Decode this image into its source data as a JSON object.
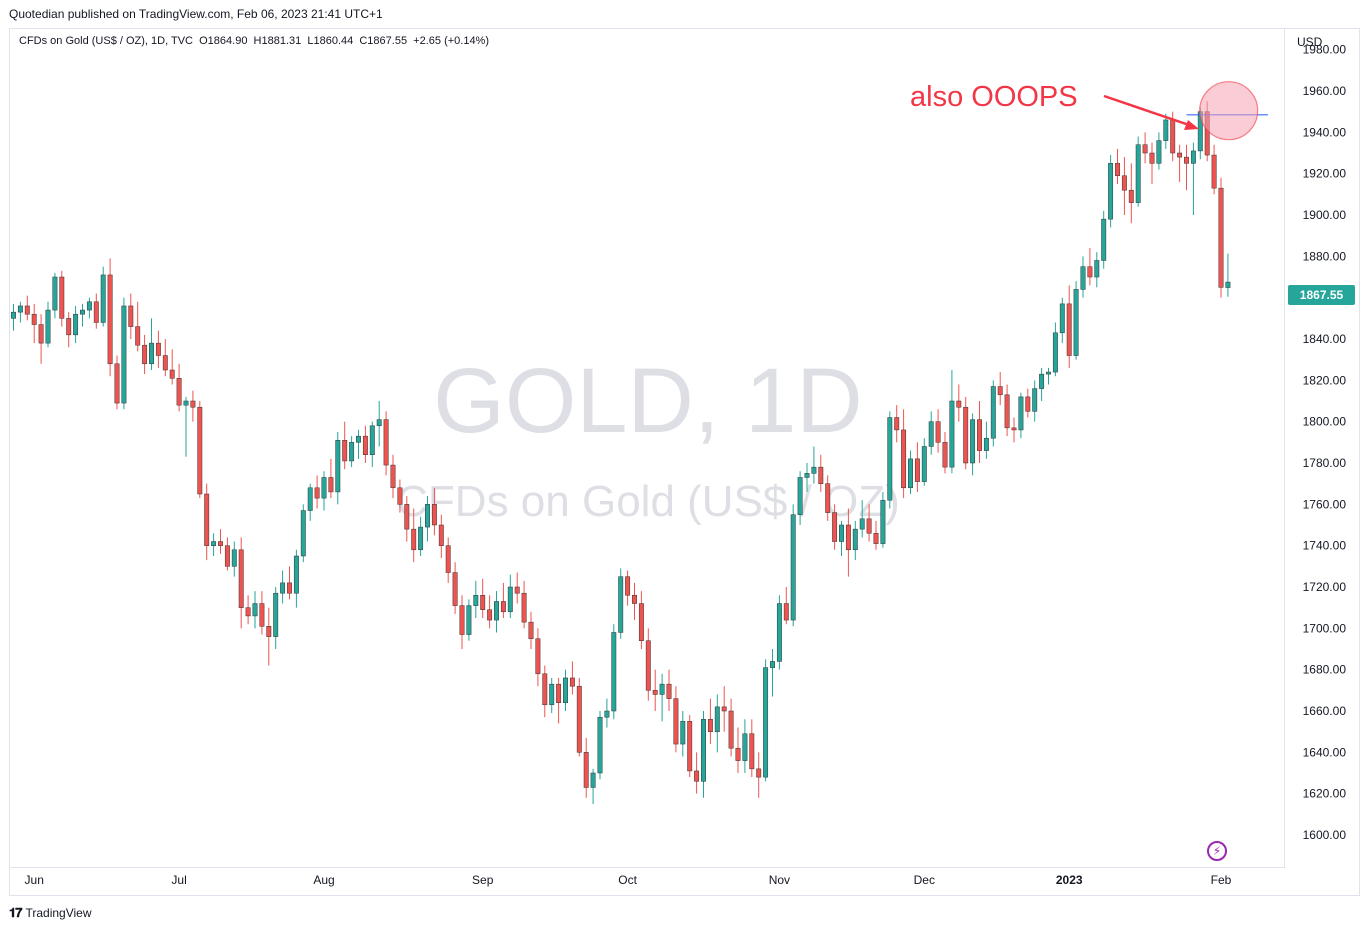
{
  "header": {
    "published_by": "Quotedian published on TradingView.com, Feb 06, 2023 21:41 UTC+1"
  },
  "legend": {
    "text": "CFDs on Gold (US$ / OZ), 1D, TVC  O1864.90  H1881.31  L1860.44  C1867.55  +2.65 (+0.14%)"
  },
  "watermark": {
    "symbol": "GOLD, 1D",
    "description": "CFDs on Gold (US$ / OZ)"
  },
  "annotation": {
    "text": "also OOOPS",
    "color": "#f23645"
  },
  "price_scale": {
    "currency": "USD",
    "last_price": "1867.55",
    "last_price_color": "#26a69a"
  },
  "footer": {
    "brand": "TradingView"
  },
  "colors": {
    "up": "#26a69a",
    "down": "#ef5350",
    "hline": "#2962ff",
    "circle_fill": "#f5a3b5"
  },
  "chart_data": {
    "type": "candlestick",
    "title": "",
    "ylabel": "USD",
    "ylim": [
      1585,
      1990
    ],
    "grid": false,
    "y_ticks": [
      "1980.00",
      "1960.00",
      "1940.00",
      "1920.00",
      "1900.00",
      "1880.00",
      "1860.00",
      "1840.00",
      "1820.00",
      "1800.00",
      "1780.00",
      "1760.00",
      "1740.00",
      "1720.00",
      "1700.00",
      "1680.00",
      "1660.00",
      "1640.00",
      "1620.00",
      "1600.00"
    ],
    "x_ticks": [
      {
        "label": "Jun",
        "index": 3,
        "bold": false
      },
      {
        "label": "Jul",
        "index": 24,
        "bold": false
      },
      {
        "label": "Aug",
        "index": 45,
        "bold": false
      },
      {
        "label": "Sep",
        "index": 68,
        "bold": false
      },
      {
        "label": "Oct",
        "index": 89,
        "bold": false
      },
      {
        "label": "Nov",
        "index": 111,
        "bold": false
      },
      {
        "label": "Dec",
        "index": 132,
        "bold": false
      },
      {
        "label": "2023",
        "index": 153,
        "bold": true
      },
      {
        "label": "Feb",
        "index": 175,
        "bold": false
      }
    ],
    "horizontal_line": {
      "price": 1948.5,
      "from_index": 170
    },
    "highlight": {
      "index": 176,
      "price": 1950
    },
    "candles": [
      [
        1850,
        1857,
        1844,
        1853
      ],
      [
        1853,
        1858,
        1848,
        1856
      ],
      [
        1856,
        1861,
        1849,
        1852
      ],
      [
        1852,
        1857,
        1838,
        1847
      ],
      [
        1847,
        1852,
        1828,
        1838
      ],
      [
        1838,
        1858,
        1836,
        1854
      ],
      [
        1854,
        1872,
        1850,
        1870
      ],
      [
        1870,
        1873,
        1846,
        1850
      ],
      [
        1850,
        1853,
        1836,
        1842
      ],
      [
        1842,
        1856,
        1838,
        1852
      ],
      [
        1852,
        1857,
        1846,
        1854
      ],
      [
        1854,
        1860,
        1850,
        1858
      ],
      [
        1858,
        1862,
        1845,
        1848
      ],
      [
        1848,
        1875,
        1846,
        1871
      ],
      [
        1871,
        1879,
        1822,
        1828
      ],
      [
        1828,
        1832,
        1806,
        1809
      ],
      [
        1809,
        1860,
        1806,
        1856
      ],
      [
        1856,
        1862,
        1840,
        1846
      ],
      [
        1846,
        1858,
        1834,
        1837
      ],
      [
        1837,
        1842,
        1823,
        1828
      ],
      [
        1828,
        1850,
        1825,
        1838
      ],
      [
        1838,
        1844,
        1826,
        1832
      ],
      [
        1832,
        1840,
        1822,
        1825
      ],
      [
        1825,
        1835,
        1818,
        1821
      ],
      [
        1821,
        1828,
        1805,
        1808
      ],
      [
        1808,
        1812,
        1783,
        1810
      ],
      [
        1810,
        1815,
        1800,
        1807
      ],
      [
        1807,
        1810,
        1763,
        1765
      ],
      [
        1765,
        1770,
        1733,
        1740
      ],
      [
        1740,
        1746,
        1735,
        1742
      ],
      [
        1742,
        1748,
        1736,
        1740
      ],
      [
        1740,
        1744,
        1728,
        1730
      ],
      [
        1730,
        1742,
        1725,
        1738
      ],
      [
        1738,
        1744,
        1700,
        1710
      ],
      [
        1710,
        1716,
        1702,
        1706
      ],
      [
        1706,
        1718,
        1700,
        1712
      ],
      [
        1712,
        1718,
        1697,
        1701
      ],
      [
        1701,
        1710,
        1682,
        1696
      ],
      [
        1696,
        1720,
        1690,
        1717
      ],
      [
        1717,
        1728,
        1712,
        1722
      ],
      [
        1722,
        1730,
        1714,
        1717
      ],
      [
        1717,
        1738,
        1710,
        1735
      ],
      [
        1735,
        1760,
        1732,
        1757
      ],
      [
        1757,
        1770,
        1752,
        1768
      ],
      [
        1768,
        1774,
        1758,
        1763
      ],
      [
        1763,
        1776,
        1757,
        1773
      ],
      [
        1773,
        1782,
        1763,
        1766
      ],
      [
        1766,
        1795,
        1760,
        1791
      ],
      [
        1791,
        1800,
        1777,
        1781
      ],
      [
        1781,
        1793,
        1778,
        1790
      ],
      [
        1790,
        1796,
        1782,
        1793
      ],
      [
        1793,
        1798,
        1780,
        1784
      ],
      [
        1784,
        1800,
        1778,
        1798
      ],
      [
        1798,
        1810,
        1788,
        1801
      ],
      [
        1801,
        1805,
        1774,
        1779
      ],
      [
        1779,
        1784,
        1763,
        1768
      ],
      [
        1768,
        1772,
        1756,
        1760
      ],
      [
        1760,
        1764,
        1742,
        1748
      ],
      [
        1748,
        1758,
        1732,
        1738
      ],
      [
        1738,
        1754,
        1735,
        1749
      ],
      [
        1749,
        1764,
        1742,
        1760
      ],
      [
        1760,
        1768,
        1745,
        1750
      ],
      [
        1750,
        1755,
        1734,
        1740
      ],
      [
        1740,
        1744,
        1722,
        1727
      ],
      [
        1727,
        1732,
        1707,
        1711
      ],
      [
        1711,
        1716,
        1690,
        1697
      ],
      [
        1697,
        1714,
        1694,
        1711
      ],
      [
        1711,
        1723,
        1705,
        1716
      ],
      [
        1716,
        1724,
        1705,
        1709
      ],
      [
        1709,
        1716,
        1700,
        1704
      ],
      [
        1704,
        1718,
        1698,
        1713
      ],
      [
        1713,
        1722,
        1705,
        1708
      ],
      [
        1708,
        1726,
        1705,
        1720
      ],
      [
        1720,
        1727,
        1712,
        1717
      ],
      [
        1717,
        1723,
        1700,
        1703
      ],
      [
        1703,
        1708,
        1690,
        1695
      ],
      [
        1695,
        1700,
        1672,
        1678
      ],
      [
        1678,
        1682,
        1657,
        1663
      ],
      [
        1663,
        1676,
        1659,
        1673
      ],
      [
        1673,
        1676,
        1654,
        1664
      ],
      [
        1664,
        1680,
        1660,
        1676
      ],
      [
        1676,
        1684,
        1668,
        1672
      ],
      [
        1672,
        1676,
        1638,
        1640
      ],
      [
        1640,
        1647,
        1618,
        1623
      ],
      [
        1623,
        1632,
        1615,
        1630
      ],
      [
        1630,
        1660,
        1627,
        1657
      ],
      [
        1657,
        1666,
        1652,
        1660
      ],
      [
        1660,
        1702,
        1656,
        1698
      ],
      [
        1698,
        1729,
        1695,
        1725
      ],
      [
        1725,
        1728,
        1711,
        1716
      ],
      [
        1716,
        1722,
        1704,
        1712
      ],
      [
        1712,
        1718,
        1690,
        1694
      ],
      [
        1694,
        1700,
        1665,
        1670
      ],
      [
        1670,
        1680,
        1660,
        1668
      ],
      [
        1668,
        1678,
        1655,
        1673
      ],
      [
        1673,
        1680,
        1660,
        1666
      ],
      [
        1666,
        1672,
        1640,
        1644
      ],
      [
        1644,
        1660,
        1638,
        1655
      ],
      [
        1655,
        1658,
        1628,
        1631
      ],
      [
        1631,
        1640,
        1620,
        1626
      ],
      [
        1626,
        1660,
        1618,
        1656
      ],
      [
        1656,
        1666,
        1644,
        1650
      ],
      [
        1650,
        1668,
        1640,
        1662
      ],
      [
        1662,
        1672,
        1650,
        1660
      ],
      [
        1660,
        1666,
        1638,
        1642
      ],
      [
        1642,
        1652,
        1630,
        1636
      ],
      [
        1636,
        1656,
        1630,
        1649
      ],
      [
        1649,
        1656,
        1628,
        1632
      ],
      [
        1632,
        1640,
        1618,
        1628
      ],
      [
        1628,
        1685,
        1626,
        1681
      ],
      [
        1681,
        1690,
        1667,
        1684
      ],
      [
        1684,
        1716,
        1680,
        1712
      ],
      [
        1712,
        1720,
        1702,
        1704
      ],
      [
        1704,
        1760,
        1701,
        1755
      ],
      [
        1755,
        1776,
        1750,
        1773
      ],
      [
        1773,
        1780,
        1766,
        1775
      ],
      [
        1775,
        1788,
        1770,
        1778
      ],
      [
        1778,
        1784,
        1766,
        1770
      ],
      [
        1770,
        1774,
        1752,
        1756
      ],
      [
        1756,
        1760,
        1738,
        1742
      ],
      [
        1742,
        1752,
        1735,
        1750
      ],
      [
        1750,
        1758,
        1725,
        1738
      ],
      [
        1738,
        1752,
        1733,
        1748
      ],
      [
        1748,
        1762,
        1744,
        1753
      ],
      [
        1753,
        1760,
        1742,
        1746
      ],
      [
        1746,
        1752,
        1738,
        1741
      ],
      [
        1741,
        1766,
        1739,
        1762
      ],
      [
        1762,
        1805,
        1758,
        1802
      ],
      [
        1802,
        1808,
        1790,
        1796
      ],
      [
        1796,
        1806,
        1763,
        1768
      ],
      [
        1768,
        1786,
        1765,
        1782
      ],
      [
        1782,
        1790,
        1766,
        1771
      ],
      [
        1771,
        1792,
        1769,
        1788
      ],
      [
        1788,
        1805,
        1784,
        1800
      ],
      [
        1800,
        1806,
        1785,
        1790
      ],
      [
        1790,
        1795,
        1775,
        1778
      ],
      [
        1778,
        1825,
        1775,
        1810
      ],
      [
        1810,
        1818,
        1800,
        1807
      ],
      [
        1807,
        1812,
        1777,
        1780
      ],
      [
        1780,
        1804,
        1774,
        1801
      ],
      [
        1801,
        1810,
        1780,
        1786
      ],
      [
        1786,
        1800,
        1782,
        1792
      ],
      [
        1792,
        1820,
        1788,
        1817
      ],
      [
        1817,
        1824,
        1808,
        1813
      ],
      [
        1813,
        1818,
        1793,
        1797
      ],
      [
        1797,
        1802,
        1790,
        1796
      ],
      [
        1796,
        1814,
        1792,
        1812
      ],
      [
        1812,
        1816,
        1802,
        1805
      ],
      [
        1805,
        1820,
        1800,
        1816
      ],
      [
        1816,
        1826,
        1810,
        1823
      ],
      [
        1823,
        1826,
        1818,
        1824
      ],
      [
        1824,
        1848,
        1822,
        1843
      ],
      [
        1843,
        1860,
        1838,
        1857
      ],
      [
        1857,
        1866,
        1826,
        1832
      ],
      [
        1832,
        1868,
        1830,
        1864
      ],
      [
        1864,
        1880,
        1860,
        1875
      ],
      [
        1875,
        1884,
        1866,
        1870
      ],
      [
        1870,
        1882,
        1865,
        1878
      ],
      [
        1878,
        1902,
        1874,
        1898
      ],
      [
        1898,
        1929,
        1894,
        1925
      ],
      [
        1925,
        1932,
        1915,
        1919
      ],
      [
        1919,
        1928,
        1900,
        1912
      ],
      [
        1912,
        1925,
        1896,
        1906
      ],
      [
        1906,
        1938,
        1904,
        1934
      ],
      [
        1934,
        1940,
        1925,
        1930
      ],
      [
        1930,
        1935,
        1915,
        1925
      ],
      [
        1925,
        1940,
        1922,
        1936
      ],
      [
        1936,
        1949,
        1932,
        1946
      ],
      [
        1946,
        1950,
        1926,
        1930
      ],
      [
        1930,
        1934,
        1916,
        1928
      ],
      [
        1928,
        1934,
        1912,
        1925
      ],
      [
        1925,
        1935,
        1900,
        1931
      ],
      [
        1931,
        1952,
        1927,
        1950
      ],
      [
        1950,
        1955,
        1926,
        1929
      ],
      [
        1929,
        1934,
        1910,
        1913
      ],
      [
        1913,
        1918,
        1860,
        1865
      ],
      [
        1864.9,
        1881.31,
        1860.44,
        1867.55
      ]
    ]
  }
}
